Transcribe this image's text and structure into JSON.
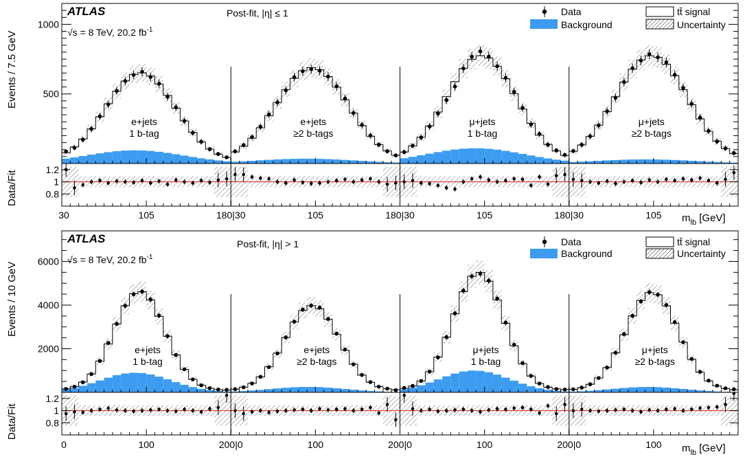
{
  "colors": {
    "background_fill": "#3d9cf0",
    "ratio_line": "#e0322d",
    "uncertainty_hatch": "#888888",
    "signal_line": "#000000",
    "data_marker": "#000000"
  },
  "chart_data": [
    {
      "type": "line",
      "experiment": "ATLAS",
      "energy_label": "√s = 8 TeV, 20.2 fb",
      "energy_sup": "-1",
      "title": "Post-fit, |η| ≤ 1",
      "ylabel": "Events / 7.5 GeV",
      "ratio_ylabel": "Data/Fit",
      "xlabel_main": "m",
      "xlabel_sub": "lb",
      "xlabel_unit": " [GeV]",
      "ylim": [
        0,
        1150
      ],
      "yticks": [
        "500",
        "1000"
      ],
      "ytick_values": [
        500,
        1000
      ],
      "ratio_ylim": [
        0.6,
        1.3
      ],
      "ratio_yticks": [
        "0.8",
        "1",
        "1.2"
      ],
      "ratio_ytick_values": [
        0.8,
        1.0,
        1.2
      ],
      "x_range": [
        30,
        180
      ],
      "xticks": [
        "30",
        "105",
        "180|30",
        "105",
        "180|30",
        "105",
        "180|30",
        "105"
      ],
      "legend": {
        "data": "Data",
        "background": "Background",
        "signal": "tt̄ signal",
        "uncertainty": "Uncertainty",
        "placement": "top-right"
      },
      "panels": [
        {
          "channel": "e+jets",
          "btag": "1 b-tag",
          "peak": 640,
          "center": 100,
          "width": 31,
          "bkg_peak": 95,
          "ratio_offsets": [
            0.2,
            -0.1,
            -0.05,
            0.0,
            0.02,
            -0.02,
            0.01,
            0.0,
            -0.01,
            0.02,
            -0.02,
            0.01,
            -0.04,
            0.03,
            0.0,
            -0.02,
            0.02,
            -0.01,
            0.03,
            0.05
          ]
        },
        {
          "channel": "e+jets",
          "btag": "≥2 b-tags",
          "peak": 675,
          "center": 102,
          "width": 32,
          "bkg_peak": 35,
          "ratio_offsets": [
            0.12,
            0.12,
            0.08,
            0.06,
            0.05,
            0.0,
            -0.02,
            0.03,
            -0.01,
            -0.03,
            -0.02,
            0.0,
            0.02,
            0.04,
            0.0,
            0.03,
            0.05,
            0.0,
            -0.04,
            -0.02
          ]
        },
        {
          "channel": "μ+jets",
          "btag": "1 b-tag",
          "peak": 760,
          "center": 102,
          "width": 31,
          "bkg_peak": 110,
          "ratio_offsets": [
            0.0,
            0.02,
            -0.02,
            -0.03,
            -0.06,
            -0.1,
            -0.12,
            0.0,
            0.05,
            0.08,
            0.03,
            0.0,
            0.02,
            0.05,
            0.04,
            -0.06,
            0.08,
            -0.04,
            0.1,
            0.12
          ]
        },
        {
          "channel": "μ+jets",
          "btag": "≥2 b-tags",
          "peak": 760,
          "center": 103,
          "width": 32,
          "bkg_peak": 30,
          "ratio_offsets": [
            0.04,
            0.02,
            0.0,
            -0.02,
            0.01,
            -0.03,
            0.0,
            0.02,
            -0.01,
            0.03,
            0.0,
            0.04,
            0.02,
            0.05,
            0.03,
            0.06,
            0.02,
            -0.02,
            0.04,
            0.15
          ]
        }
      ]
    },
    {
      "type": "line",
      "experiment": "ATLAS",
      "energy_label": "√s = 8 TeV, 20.2 fb",
      "energy_sup": "-1",
      "title": "Post-fit, |η| > 1",
      "ylabel": "Events / 10 GeV",
      "ratio_ylabel": "Data/Fit",
      "xlabel_main": "m",
      "xlabel_sub": "lb",
      "xlabel_unit": " [GeV]",
      "ylim": [
        0,
        7400
      ],
      "yticks": [
        "2000",
        "4000",
        "6000"
      ],
      "ytick_values": [
        2000,
        4000,
        6000
      ],
      "ratio_ylim": [
        0.6,
        1.3
      ],
      "ratio_yticks": [
        "0.8",
        "1",
        "1.2"
      ],
      "ratio_ytick_values": [
        0.8,
        1.0,
        1.2
      ],
      "x_range": [
        0,
        200
      ],
      "xticks": [
        "0",
        "100",
        "200|0",
        "100",
        "200|0",
        "100",
        "200|0",
        "100"
      ],
      "legend": {
        "data": "Data",
        "background": "Background",
        "signal": "tt̄ signal",
        "uncertainty": "Uncertainty",
        "placement": "top-right"
      },
      "panels": [
        {
          "channel": "e+jets",
          "btag": "1 b-tag",
          "peak": 4550,
          "center": 92,
          "width": 30,
          "bkg_peak": 900,
          "ratio_offsets": [
            -0.05,
            -0.02,
            -0.03,
            0.0,
            0.02,
            0.04,
            0.01,
            0.0,
            -0.01,
            0.0,
            0.01,
            0.02,
            0.0,
            -0.01,
            0.02,
            0.0,
            -0.02,
            0.03,
            0.05,
            0.25
          ]
        },
        {
          "channel": "e+jets",
          "btag": "≥2 b-tags",
          "peak": 3900,
          "center": 96,
          "width": 32,
          "bkg_peak": 250,
          "ratio_offsets": [
            0.0,
            -0.05,
            -0.02,
            0.0,
            -0.03,
            -0.01,
            0.0,
            0.01,
            0.02,
            0.0,
            0.03,
            0.01,
            0.02,
            0.03,
            0.0,
            0.02,
            0.05,
            -0.04,
            0.1,
            -0.15
          ]
        },
        {
          "channel": "μ+jets",
          "btag": "1 b-tag",
          "peak": 5400,
          "center": 93,
          "width": 30,
          "bkg_peak": 1000,
          "ratio_offsets": [
            0.25,
            0.03,
            0.0,
            0.02,
            -0.01,
            0.0,
            0.01,
            0.02,
            0.0,
            -0.02,
            0.01,
            0.03,
            0.02,
            0.04,
            0.05,
            0.02,
            -0.04,
            0.08,
            -0.05,
            0.1
          ]
        },
        {
          "channel": "μ+jets",
          "btag": "≥2 b-tags",
          "peak": 4500,
          "center": 98,
          "width": 31,
          "bkg_peak": 250,
          "ratio_offsets": [
            0.0,
            0.02,
            0.0,
            -0.01,
            0.0,
            0.01,
            0.02,
            0.0,
            -0.02,
            0.01,
            0.0,
            0.02,
            0.03,
            0.0,
            0.02,
            0.04,
            0.05,
            0.06,
            0.1,
            0.3
          ]
        }
      ]
    }
  ]
}
